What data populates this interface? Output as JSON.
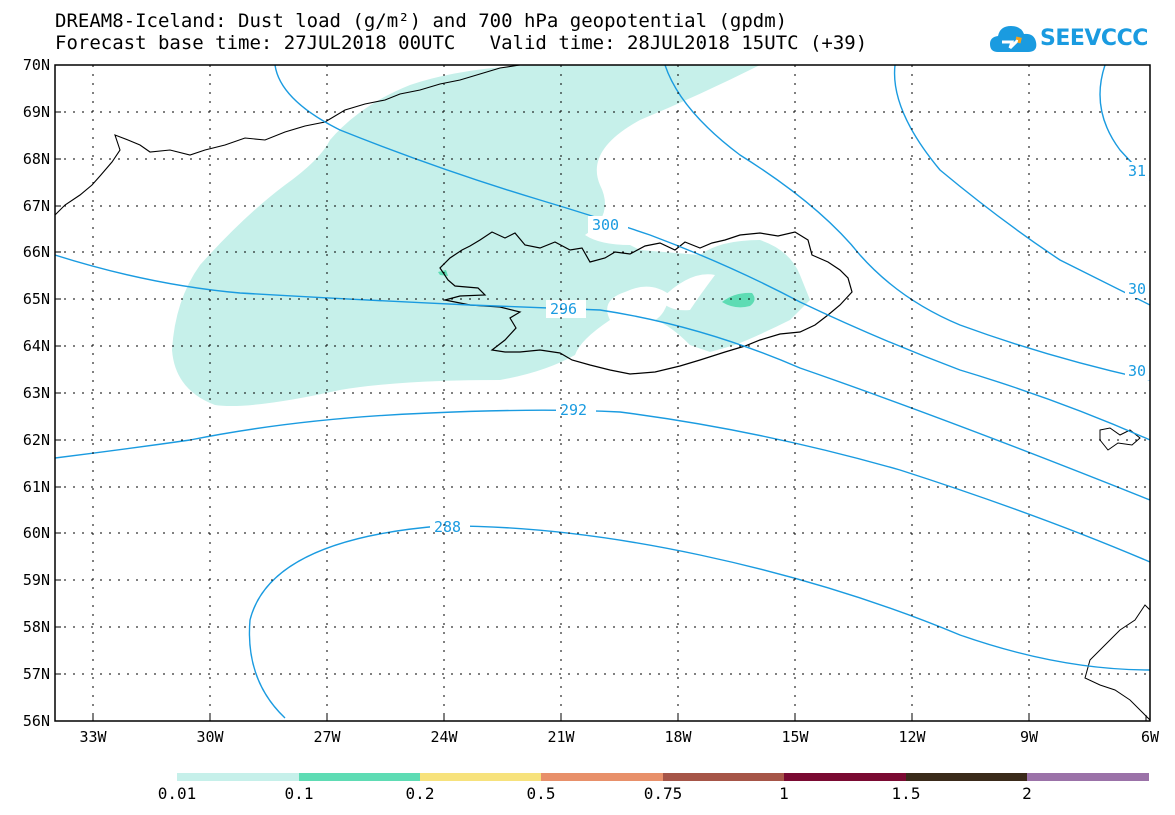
{
  "title": {
    "line1": "DREAM8-Iceland: Dust load (g/m²) and 700 hPa geopotential (gpdm)",
    "line2": "Forecast base time: 27JUL2018 00UTC   Valid time: 28JUL2018 15UTC (+39)"
  },
  "logo": {
    "text": "SEEVCCC"
  },
  "axes": {
    "lat_labels": [
      "70N",
      "69N",
      "68N",
      "67N",
      "66N",
      "65N",
      "64N",
      "63N",
      "62N",
      "61N",
      "60N",
      "59N",
      "58N",
      "57N",
      "56N"
    ],
    "lon_labels": [
      "33W",
      "30W",
      "27W",
      "24W",
      "21W",
      "18W",
      "15W",
      "12W",
      "9W",
      "6W"
    ]
  },
  "contours": {
    "labels": [
      "300",
      "296",
      "292",
      "288",
      "31",
      "30",
      "30"
    ]
  },
  "colorbar": {
    "labels": [
      "0.01",
      "0.1",
      "0.2",
      "0.5",
      "0.75",
      "1",
      "1.5",
      "2"
    ],
    "colors": [
      "#c6f0ea",
      "#5edcb4",
      "#f7e27c",
      "#e8906a",
      "#a65548",
      "#7a0a32",
      "#3a2a1a",
      "#9b72a8"
    ]
  },
  "colors": {
    "contour": "#1a9be0",
    "dust_light": "#c6f0ea",
    "dust_mid": "#5edcb4"
  }
}
